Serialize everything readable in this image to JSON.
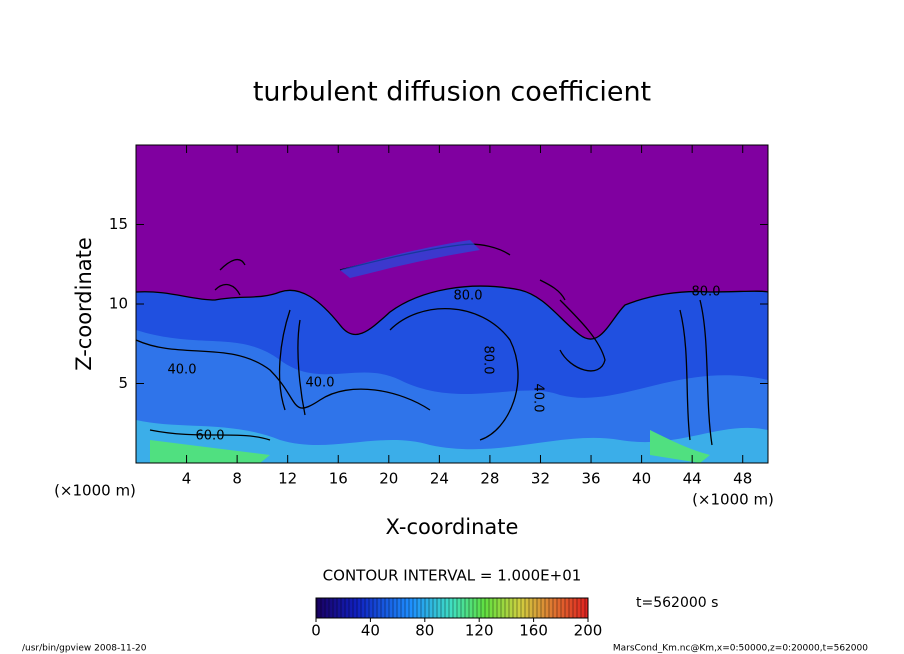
{
  "chart_data": {
    "type": "contour",
    "title": "turbulent diffusion coefficient",
    "x_label": "X-coordinate",
    "y_label": "Z-coordinate",
    "x_unit": "(×1000 m)",
    "y_unit": "(×1000 m)",
    "xlim": [
      0,
      50
    ],
    "xticks": [
      4,
      8,
      12,
      16,
      20,
      24,
      28,
      32,
      36,
      40,
      44,
      48
    ],
    "ylim": [
      0,
      20
    ],
    "yticks": [
      5,
      10,
      15
    ],
    "contour_interval": "CONTOUR INTERVAL = 1.000E+01",
    "contour_labels": [
      "40.0",
      "60.0",
      "40.0",
      "80.0",
      "80.0",
      "40.0",
      "80.0"
    ],
    "colorbar": {
      "lim": [
        0,
        200
      ],
      "ticks": [
        0,
        40,
        80,
        120,
        160,
        200
      ]
    },
    "time_label": "t=562000 s"
  },
  "footer": {
    "left": "/usr/bin/gpview  2008-11-20",
    "right": "MarsCond_Km.nc@Km,x=0:50000,z=0:20000,t=562000"
  }
}
